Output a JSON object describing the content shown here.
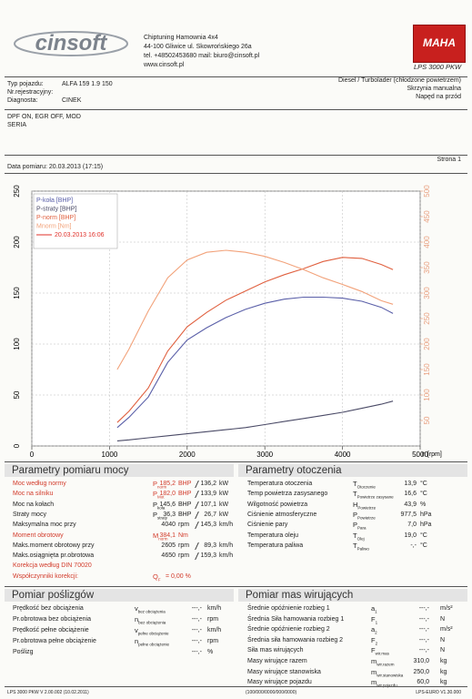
{
  "header": {
    "logo": "cinsoft",
    "company": [
      "Chiptuning Hamownia 4x4",
      "44-100 Gliwice ul. Skowrońskiego 26a",
      "tel. +48502453680 mail: biuro@cinsoft.pl",
      "www.cinsoft.pl"
    ],
    "brand": "MAHA",
    "model": "LPS 3000 PKW"
  },
  "vehicle": [
    {
      "label": "Typ pojazdu:",
      "value": "ALFA 159 1.9 150"
    },
    {
      "label": "Nr.rejestracyjny:"
    },
    {
      "label": "Diagnosta:",
      "value": "CINEK"
    }
  ],
  "vehicle_right": [
    "Diesel / Turbolader (chłodzone powietrzem)",
    "Skrzynia manualna",
    "Napęd na przód"
  ],
  "notes": [
    "DPF ON, EGR OFF, MOD",
    "SERIA"
  ],
  "page": "Strona 1",
  "date": "Data pomiaru: 20.03.2013 (17:15)",
  "chart": {
    "type": "line",
    "xlabel": "n [rpm]",
    "run_label": "20.03.2013 16:06",
    "run_color": "#e0302a",
    "x": [
      1100,
      1250,
      1500,
      1750,
      2000,
      2250,
      2500,
      2750,
      3000,
      3250,
      3500,
      3750,
      4000,
      4250,
      4500,
      4650
    ],
    "series": [
      {
        "name": "P-koła [BHP]",
        "color": "#5a5fa8",
        "values": [
          18,
          28,
          48,
          82,
          104,
          116,
          126,
          134,
          140,
          144,
          146,
          146,
          145,
          142,
          136,
          130
        ]
      },
      {
        "name": "P-straty [BHP]",
        "color": "#4a4a66",
        "values": [
          5,
          6,
          8,
          10,
          12,
          14,
          16,
          18,
          21,
          24,
          27,
          30,
          33,
          37,
          41,
          44
        ]
      },
      {
        "name": "P-norm [BHP]",
        "color": "#e0603f",
        "values": [
          23,
          34,
          57,
          93,
          117,
          131,
          143,
          152,
          161,
          168,
          174,
          181,
          185,
          184,
          178,
          173
        ]
      },
      {
        "name": "Mnorm [Nm]",
        "color": "#f2a27a",
        "axis": "y2",
        "values": [
          150,
          190,
          265,
          330,
          365,
          380,
          384,
          380,
          372,
          360,
          346,
          330,
          317,
          303,
          285,
          278
        ]
      }
    ],
    "xlim": [
      0,
      5000
    ],
    "xticks": [
      0,
      1000,
      2000,
      3000,
      4000,
      5000
    ],
    "ylim": [
      0,
      250
    ],
    "yticks": [
      0,
      50,
      100,
      150,
      200,
      250
    ],
    "y2lim": [
      0,
      500
    ],
    "y2ticks": [
      50,
      100,
      150,
      200,
      250,
      300,
      350,
      400,
      450,
      500
    ],
    "y2color": "#e8a080",
    "grid": true
  },
  "sections": [
    {
      "title": "Parametry pomiaru mocy",
      "rows": [
        {
          "label": "Moc według normy",
          "sym": "P",
          "sub": "norm",
          "value": "185,2",
          "unit": "BHP",
          "value2": "136,2",
          "unit2": "kW",
          "color": "#d23a2a"
        },
        {
          "label": "Moc na silniku",
          "sym": "P",
          "sub": "Mot",
          "value": "182,0",
          "unit": "BHP",
          "value2": "133,9",
          "unit2": "kW",
          "color": "#d23a2a"
        },
        {
          "label": "Moc na kołach",
          "sym": "P",
          "sub": "koła",
          "value": "145,6",
          "unit": "BHP",
          "value2": "107,1",
          "unit2": "kW"
        },
        {
          "label": "Straty mocy",
          "sym": "P",
          "sub": "straty",
          "value": "36,3",
          "unit": "BHP",
          "value2": "26,7",
          "unit2": "kW"
        },
        {
          "label": "Maksymalna moc przy",
          "value": "4040",
          "unit": "rpm",
          "value2": "145,3",
          "unit2": "km/h"
        },
        {
          "label": "Moment obrotowy",
          "sym": "M",
          "sub": "norm",
          "value": "384,1",
          "unit": "Nm",
          "color": "#d23a2a"
        },
        {
          "label": "Maks.moment obrotowy przy",
          "value": "2605",
          "unit": "rpm",
          "value2": "89,3",
          "unit2": "km/h"
        },
        {
          "label": "Maks.osiągnięta pr.obrotowa",
          "value": "4650",
          "unit": "rpm",
          "value2": "159,3",
          "unit2": "km/h"
        },
        {
          "label": "Korekcja według DIN 70020",
          "color": "#d23a2a"
        },
        {
          "label": "Współczynniki korekcji:",
          "sym": "Q",
          "sub": "F",
          "value": "= 0,00 %",
          "color": "#d23a2a"
        }
      ]
    },
    {
      "title": "Parametry otoczenia",
      "rows": [
        {
          "label": "Temperatura otoczenia",
          "sym": "T",
          "sub": "Otoczenie",
          "value": "13,9",
          "unit": "°C"
        },
        {
          "label": "Temp powietrza zasysanego",
          "sym": "T",
          "sub": "Powietrze zasysane",
          "value": "16,6",
          "unit": "°C"
        },
        {
          "label": "Wilgotność powietrza",
          "sym": "H",
          "sub": "Powietrze",
          "value": "43,9",
          "unit": "%"
        },
        {
          "label": "Ciśnienie atmosferyczne",
          "sym": "P",
          "sub": "Powietrze",
          "value": "977,5",
          "unit": "hPa"
        },
        {
          "label": "Ciśnienie pary",
          "sym": "P",
          "sub": "Para",
          "value": "7,0",
          "unit": "hPa"
        },
        {
          "label": "Temperatura oleju",
          "sym": "T",
          "sub": "Olej",
          "value": "19,0",
          "unit": "°C"
        },
        {
          "label": "Temperatura paliwa",
          "sym": "T",
          "sub": "Paliwo",
          "value": "-,-",
          "unit": "°C"
        }
      ]
    },
    {
      "title": "Pomiar poślizgów",
      "rows": [
        {
          "label": "Prędkość bez obciążenia",
          "sym": "v",
          "sub": "bez obciążenia",
          "value": "---,-",
          "unit": "km/h"
        },
        {
          "label": "Pr.obrotowa bez obciążenia",
          "sym": "n",
          "sub": "bez obciążenia",
          "value": "---,-",
          "unit": "rpm"
        },
        {
          "label": "Prędkość pełne obciążenie",
          "sym": "v",
          "sub": "pełne obciążenie",
          "value": "---,-",
          "unit": "km/h"
        },
        {
          "label": "Pr.obrotowa pełne obciążenie",
          "sym": "n",
          "sub": "pełne obciążenie",
          "value": "---,-",
          "unit": "rpm"
        },
        {
          "label": "Poślizg",
          "value": "---,-",
          "unit": "%"
        }
      ]
    },
    {
      "title": "Pomiar mas wirujących",
      "rows": [
        {
          "label": "Średnie opóźnienie rozbieg 1",
          "sym": "a",
          "sub": "1",
          "value": "---,-",
          "unit": "m/s²"
        },
        {
          "label": "Średnia Siła hamowania rozbieg 1",
          "sym": "F",
          "sub": "1",
          "value": "---,-",
          "unit": "N"
        },
        {
          "label": "Średnie opóźnienie rozbieg 2",
          "sym": "a",
          "sub": "2",
          "value": "---,-",
          "unit": "m/s²"
        },
        {
          "label": "Średnia siła hamowania rozbieg 2",
          "sym": "F",
          "sub": "2",
          "value": "---,-",
          "unit": "N"
        },
        {
          "label": "Siła mas wirujących",
          "sym": "F",
          "sub": "wir.mas",
          "value": "---,-",
          "unit": "N"
        },
        {
          "label": "Masy wirujące razem",
          "sym": "m",
          "sub": "wir.razem",
          "value": "310,0",
          "unit": "kg"
        },
        {
          "label": "Masy wirujące stanowiska",
          "sym": "m",
          "sub": "wir.stanowiska",
          "value": "250,0",
          "unit": "kg"
        },
        {
          "label": "Masy wirujące pojazdu",
          "sym": "m",
          "sub": "wir.pojazdu",
          "value": "60,0",
          "unit": "kg"
        }
      ]
    }
  ],
  "footer": [
    "LPS 3000 PKW V 2.00.002 (10.02.2011)",
    "(100/000/0000/000/0000)",
    "LPS-EURO V1.30.000"
  ]
}
